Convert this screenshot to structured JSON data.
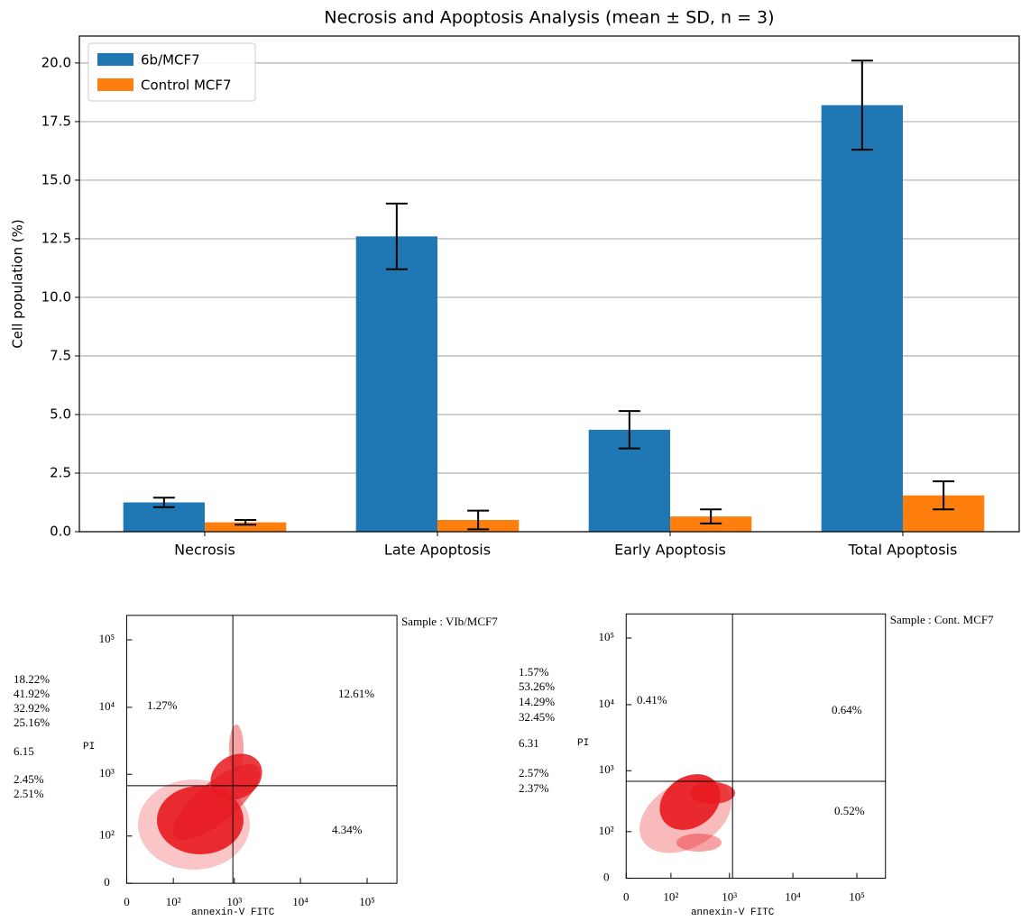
{
  "chart_data": [
    {
      "type": "bar",
      "title": "Necrosis and Apoptosis Analysis (mean ± SD, n = 3)",
      "ylabel": "Cell population (%)",
      "categories": [
        "Necrosis",
        "Late Apoptosis",
        "Early Apoptosis",
        "Total Apoptosis"
      ],
      "series": [
        {
          "name": "6b/MCF7",
          "color": "#1f77b4",
          "values": [
            1.25,
            12.6,
            4.35,
            18.2
          ],
          "errors": [
            0.2,
            1.4,
            0.8,
            1.9
          ]
        },
        {
          "name": "Control MCF7",
          "color": "#ff7f0e",
          "values": [
            0.4,
            0.5,
            0.65,
            1.55
          ],
          "errors": [
            0.1,
            0.4,
            0.3,
            0.6
          ]
        }
      ],
      "ylim": [
        0,
        21.15
      ],
      "yticks": [
        {
          "value": 0,
          "label": "0.0"
        },
        {
          "value": 2.5,
          "label": "2.5"
        },
        {
          "value": 5,
          "label": "5.0"
        },
        {
          "value": 7.5,
          "label": "7.5"
        },
        {
          "value": 10,
          "label": "10.0"
        },
        {
          "value": 12.5,
          "label": "12.5"
        },
        {
          "value": 15,
          "label": "15.0"
        },
        {
          "value": 17.5,
          "label": "17.5"
        },
        {
          "value": 20,
          "label": "20.0"
        }
      ],
      "grid": true,
      "legend": "upper left"
    },
    {
      "type": "flow",
      "sample": "Sample : VIb/MCF7",
      "xlabel": "annexin-V FITC",
      "ylabel": "PI",
      "xscale": "log",
      "yscale": "log",
      "xlim": [
        0,
        280000
      ],
      "ylim": [
        0,
        230000
      ],
      "xticks": [
        0,
        {
          "value": 100,
          "label": "10²"
        },
        {
          "value": 1000,
          "label": "10³"
        },
        {
          "value": 10000,
          "label": "10⁴"
        },
        {
          "value": 100000,
          "label": "10⁵"
        }
      ],
      "yticks": [
        0,
        {
          "value": 100,
          "label": "10²"
        },
        {
          "value": 1000,
          "label": "10³"
        },
        {
          "value": 10000,
          "label": "10⁴"
        },
        {
          "value": 100000,
          "label": "10⁵"
        }
      ],
      "gate": {
        "x": 950,
        "y": 670
      },
      "quadrants": {
        "upper_left": "1.27%",
        "upper_right": "12.61%",
        "lower_right": "4.34%"
      },
      "stats": [
        "18.22%",
        "41.92%",
        "32.92%",
        "25.16%",
        "6.15",
        "2.45%",
        "2.51%"
      ]
    },
    {
      "type": "flow",
      "sample": "Sample : Cont. MCF7",
      "xlabel": "annexin-V FITC",
      "ylabel": "PI",
      "xscale": "log",
      "yscale": "log",
      "xlim": [
        0,
        280000
      ],
      "ylim": [
        0,
        230000
      ],
      "xticks": [
        0,
        {
          "value": 100,
          "label": "10²"
        },
        {
          "value": 1000,
          "label": "10³"
        },
        {
          "value": 10000,
          "label": "10⁴"
        },
        {
          "value": 100000,
          "label": "10⁵"
        }
      ],
      "yticks": [
        0,
        {
          "value": 100,
          "label": "10²"
        },
        {
          "value": 1000,
          "label": "10³"
        },
        {
          "value": 10000,
          "label": "10⁴"
        },
        {
          "value": 100000,
          "label": "10⁵"
        }
      ],
      "gate": {
        "x": 1120,
        "y": 685
      },
      "quadrants": {
        "upper_left": "0.41%",
        "upper_right": "0.64%",
        "lower_right": "0.52%"
      },
      "stats": [
        "1.57%",
        "53.26%",
        "14.29%",
        "32.45%",
        "6.31",
        "2.57%",
        "2.37%"
      ]
    }
  ]
}
